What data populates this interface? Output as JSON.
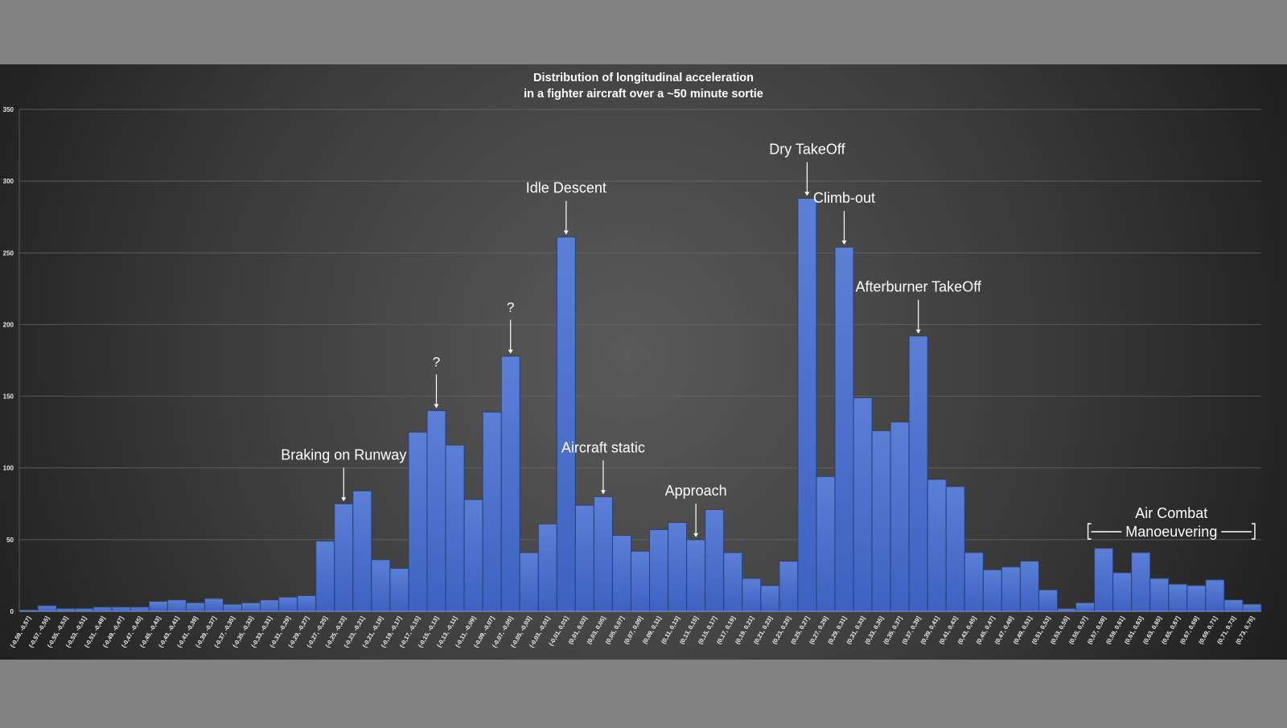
{
  "chart_data": {
    "type": "bar",
    "title": [
      "Distribution of longitudinal acceleration",
      "in a fighter aircraft over a ~50 minute sortie"
    ],
    "xlabel": "",
    "ylabel": "",
    "ylim": [
      0,
      350
    ],
    "yticks": [
      0,
      50,
      100,
      150,
      200,
      250,
      300,
      350
    ],
    "grid": true,
    "categories": [
      "(-0,59, -0,57]",
      "(-0,57, -0,55]",
      "(-0,55, -0,53]",
      "(-0,53, -0,51]",
      "(-0,51, -0,49]",
      "(-0,49, -0,47]",
      "(-0,47, -0,45]",
      "(-0,45, -0,43]",
      "(-0,43, -0,41]",
      "(-0,41, -0,39]",
      "(-0,39, -0,37]",
      "(-0,37, -0,35]",
      "(-0,35, -0,33]",
      "(-0,33, -0,31]",
      "(-0,31, -0,29]",
      "(-0,29, -0,27]",
      "(-0,27, -0,25]",
      "(-0,25, -0,23]",
      "(-0,23, -0,21]",
      "(-0,21, -0,19]",
      "(-0,19, -0,17]",
      "(-0,17, -0,15]",
      "(-0,15, -0,13]",
      "(-0,13, -0,11]",
      "(-0,11, -0,09]",
      "(-0,09, -0,07]",
      "(-0,07, -0,05]",
      "(-0,05, -0,03]",
      "(-0,03, -0,01]",
      "(-0,01, 0,01]",
      "(0,01, 0,03]",
      "(0,03, 0,05]",
      "(0,05, 0,07]",
      "(0,07, 0,09]",
      "(0,09, 0,11]",
      "(0,11, 0,13]",
      "(0,13, 0,15]",
      "(0,15, 0,17]",
      "(0,17, 0,19]",
      "(0,19, 0,21]",
      "(0,21, 0,23]",
      "(0,23, 0,25]",
      "(0,25, 0,27]",
      "(0,27, 0,29]",
      "(0,29, 0,31]",
      "(0,31, 0,33]",
      "(0,33, 0,35]",
      "(0,35, 0,37]",
      "(0,37, 0,39]",
      "(0,39, 0,41]",
      "(0,41, 0,43]",
      "(0,43, 0,45]",
      "(0,45, 0,47]",
      "(0,47, 0,49]",
      "(0,49, 0,51]",
      "(0,51, 0,53]",
      "(0,53, 0,55]",
      "(0,55, 0,57]",
      "(0,57, 0,59]",
      "(0,59, 0,61]",
      "(0,61, 0,63]",
      "(0,63, 0,65]",
      "(0,65, 0,67]",
      "(0,67, 0,69]",
      "(0,69, 0,71]",
      "(0,71, 0,73]",
      "(0,73, 0,75]"
    ],
    "values": [
      1,
      4,
      2,
      2,
      3,
      3,
      3,
      7,
      8,
      6,
      9,
      5,
      6,
      8,
      10,
      11,
      49,
      75,
      84,
      36,
      30,
      125,
      140,
      116,
      78,
      139,
      178,
      41,
      61,
      261,
      74,
      80,
      53,
      42,
      57,
      62,
      50,
      71,
      41,
      23,
      18,
      35,
      288,
      94,
      254,
      149,
      126,
      132,
      192,
      92,
      87,
      41,
      29,
      31,
      35,
      15,
      2,
      6,
      44,
      27,
      41,
      23,
      19,
      18,
      22,
      8,
      5
    ],
    "annotations": [
      {
        "text": "Braking on Runway",
        "bar": 17
      },
      {
        "text": "?",
        "bar": 22
      },
      {
        "text": "?",
        "bar": 26
      },
      {
        "text": "Idle Descent",
        "bar": 29
      },
      {
        "text": "Aircraft static",
        "bar": 31
      },
      {
        "text": "Approach",
        "bar": 36
      },
      {
        "text": "Dry TakeOff",
        "bar": 42
      },
      {
        "text": "Climb-out",
        "bar": 44
      },
      {
        "text": "Afterburner TakeOff",
        "bar": 48
      }
    ],
    "bracket_annotation": {
      "line1": "Air Combat",
      "line2": "Manoeuvering",
      "from_bar": 58,
      "to_bar": 66
    },
    "colors": {
      "bar_fill": "#4469c8",
      "bar_stroke": "#24407e",
      "text": "#ffffff",
      "grid": "#6a6a6a"
    }
  }
}
